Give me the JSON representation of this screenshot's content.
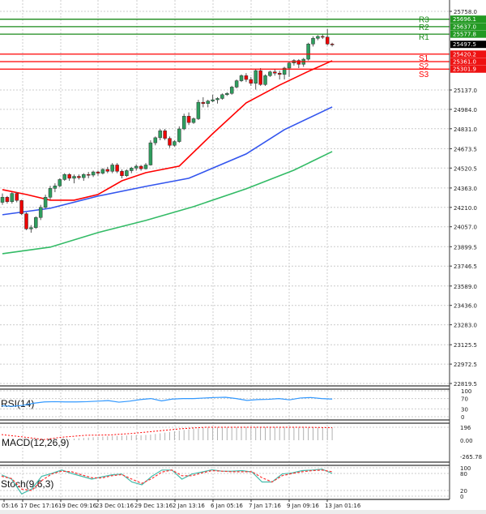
{
  "chart_data": [
    {
      "type": "candlestick",
      "pane": "price",
      "ylim": [
        22819.5,
        25758.0
      ],
      "y_ticks": [
        "25758.0",
        "25137.0",
        "24984.0",
        "24831.0",
        "24673.5",
        "24520.5",
        "24363.0",
        "24210.0",
        "24057.0",
        "23899.5",
        "23746.5",
        "23589.0",
        "23436.0",
        "23283.0",
        "23125.5",
        "22972.5",
        "22819.5"
      ],
      "x_ticks": [
        "05:16",
        "17 Dec 17:16",
        "19 Dec 09:16",
        "23 Dec 01:16",
        "29 Dec 13:16",
        "2 Jan 13:16",
        "6 Jan 05:16",
        "7 Jan 17:16",
        "9 Jan 09:16",
        "13 Jan 01:16"
      ],
      "grid": true,
      "current_price": "25497.5",
      "levels": [
        {
          "name": "R3",
          "value": "25696.1",
          "price": 25696.1,
          "color": "#1a8a1a"
        },
        {
          "name": "R2",
          "value": "25637.0",
          "price": 25637.0,
          "color": "#1a8a1a"
        },
        {
          "name": "R1",
          "value": "25577.8",
          "price": 25577.8,
          "color": "#1a8a1a"
        },
        {
          "name": "S1",
          "value": "25420.2",
          "price": 25420.2,
          "color": "#ff0000"
        },
        {
          "name": "S2",
          "value": "25361.0",
          "price": 25361.0,
          "color": "#ff0000"
        },
        {
          "name": "S3",
          "value": "25301.9",
          "price": 25301.9,
          "color": "#ff0000"
        }
      ],
      "ohlc": [
        [
          24250,
          24320,
          24230,
          24290
        ],
        [
          24290,
          24300,
          24240,
          24255
        ],
        [
          24255,
          24330,
          24240,
          24320
        ],
        [
          24320,
          24330,
          24250,
          24265
        ],
        [
          24265,
          24270,
          24150,
          24160
        ],
        [
          24160,
          24170,
          24030,
          24040
        ],
        [
          24040,
          24070,
          24010,
          24050
        ],
        [
          24050,
          24140,
          24040,
          24130
        ],
        [
          24130,
          24230,
          24110,
          24210
        ],
        [
          24210,
          24310,
          24200,
          24290
        ],
        [
          24290,
          24380,
          24270,
          24360
        ],
        [
          24360,
          24400,
          24330,
          24380
        ],
        [
          24380,
          24440,
          24370,
          24430
        ],
        [
          24430,
          24480,
          24420,
          24470
        ],
        [
          24470,
          24480,
          24420,
          24440
        ],
        [
          24440,
          24470,
          24400,
          24455
        ],
        [
          24455,
          24470,
          24430,
          24445
        ],
        [
          24445,
          24480,
          24420,
          24470
        ],
        [
          24470,
          24490,
          24440,
          24465
        ],
        [
          24465,
          24500,
          24450,
          24490
        ],
        [
          24490,
          24500,
          24460,
          24480
        ],
        [
          24480,
          24520,
          24470,
          24510
        ],
        [
          24510,
          24530,
          24480,
          24495
        ],
        [
          24495,
          24560,
          24480,
          24545
        ],
        [
          24545,
          24560,
          24480,
          24495
        ],
        [
          24495,
          24510,
          24440,
          24460
        ],
        [
          24460,
          24510,
          24450,
          24500
        ],
        [
          24500,
          24530,
          24480,
          24520
        ],
        [
          24520,
          24550,
          24500,
          24535
        ],
        [
          24535,
          24545,
          24500,
          24515
        ],
        [
          24515,
          24560,
          24510,
          24545
        ],
        [
          24545,
          24740,
          24540,
          24720
        ],
        [
          24720,
          24770,
          24700,
          24760
        ],
        [
          24760,
          24830,
          24740,
          24815
        ],
        [
          24815,
          24830,
          24740,
          24755
        ],
        [
          24755,
          24770,
          24680,
          24700
        ],
        [
          24700,
          24740,
          24690,
          24730
        ],
        [
          24730,
          24850,
          24720,
          24830
        ],
        [
          24830,
          24950,
          24820,
          24930
        ],
        [
          24930,
          24960,
          24860,
          24880
        ],
        [
          24880,
          24920,
          24870,
          24910
        ],
        [
          24910,
          25060,
          24900,
          25040
        ],
        [
          25040,
          25080,
          25000,
          25030
        ],
        [
          25030,
          25060,
          25000,
          25050
        ],
        [
          25050,
          25100,
          25040,
          25060
        ],
        [
          25060,
          25080,
          25030,
          25070
        ],
        [
          25070,
          25110,
          25060,
          25100
        ],
        [
          25100,
          25120,
          25090,
          25110
        ],
        [
          25110,
          25170,
          25100,
          25160
        ],
        [
          25160,
          25220,
          25150,
          25210
        ],
        [
          25210,
          25260,
          25200,
          25250
        ],
        [
          25250,
          25270,
          25200,
          25220
        ],
        [
          25220,
          25240,
          25170,
          25190
        ],
        [
          25190,
          25300,
          25140,
          25290
        ],
        [
          25290,
          25310,
          25170,
          25180
        ],
        [
          25180,
          25260,
          25170,
          25250
        ],
        [
          25250,
          25290,
          25240,
          25280
        ],
        [
          25280,
          25300,
          25250,
          25270
        ],
        [
          25270,
          25290,
          25220,
          25260
        ],
        [
          25260,
          25320,
          25220,
          25310
        ],
        [
          25310,
          25360,
          25240,
          25350
        ],
        [
          25350,
          25380,
          25330,
          25370
        ],
        [
          25370,
          25380,
          25310,
          25340
        ],
        [
          25340,
          25390,
          25320,
          25380
        ],
        [
          25380,
          25510,
          25370,
          25500
        ],
        [
          25500,
          25560,
          25480,
          25545
        ],
        [
          25545,
          25570,
          25530,
          25560
        ],
        [
          25560,
          25580,
          25540,
          25555
        ],
        [
          25555,
          25620,
          25490,
          25500
        ],
        [
          25500,
          25510,
          25480,
          25495
        ]
      ],
      "moving_averages": [
        {
          "color": "#ff0000",
          "points": [
            [
              0,
              24350
            ],
            [
              5,
              24312
            ],
            [
              10,
              24267
            ],
            [
              15,
              24267
            ],
            [
              20,
              24312
            ],
            [
              25,
              24420
            ],
            [
              30,
              24484
            ],
            [
              37,
              24536
            ],
            [
              44,
              24792
            ],
            [
              51,
              25035
            ],
            [
              58,
              25176
            ],
            [
              64,
              25284
            ],
            [
              69,
              25368
            ]
          ]
        },
        {
          "color": "#3355ee",
          "points": [
            [
              0,
              24152
            ],
            [
              10,
              24203
            ],
            [
              20,
              24299
            ],
            [
              30,
              24376
            ],
            [
              39,
              24440
            ],
            [
              51,
              24632
            ],
            [
              59,
              24824
            ],
            [
              69,
              25003
            ]
          ]
        },
        {
          "color": "#33bb66",
          "points": [
            [
              0,
              23844
            ],
            [
              10,
              23896
            ],
            [
              20,
              24011
            ],
            [
              30,
              24107
            ],
            [
              40,
              24216
            ],
            [
              51,
              24357
            ],
            [
              61,
              24504
            ],
            [
              69,
              24651
            ]
          ]
        }
      ],
      "bull_color": "#2e9e5e",
      "bear_color": "#ee0000"
    },
    {
      "type": "line",
      "pane": "rsi",
      "label": "RSI(14)",
      "ylim": [
        0,
        100
      ],
      "y_ticks": [
        "100",
        "70",
        "30",
        "0"
      ],
      "color": "#3399ff",
      "values": [
        42,
        40,
        44,
        52,
        57,
        58,
        57,
        57,
        58,
        60,
        62,
        56,
        60,
        66,
        70,
        61,
        68,
        70,
        70,
        72,
        74,
        75,
        70,
        63,
        66,
        67,
        70,
        65,
        72,
        74,
        70,
        68
      ]
    },
    {
      "type": "bar+line",
      "pane": "macd",
      "label": "MACD(12,26,9)",
      "ylim": [
        -265.78,
        196
      ],
      "y_ticks": [
        "196",
        "0.00",
        "-265.78"
      ],
      "histogram": [
        0,
        0,
        0,
        0,
        0,
        0,
        0,
        0,
        0,
        0,
        0,
        0,
        0,
        0,
        15,
        25,
        30,
        35,
        40,
        45,
        50,
        55,
        60,
        65,
        65,
        70,
        70,
        75,
        75,
        75,
        80,
        85,
        95,
        105,
        115,
        125,
        135,
        145,
        155,
        165,
        175,
        180,
        185,
        190,
        195,
        196,
        196,
        196,
        196,
        196,
        196,
        196,
        196,
        196,
        196,
        196,
        196,
        196,
        194,
        192,
        190,
        190,
        190,
        190,
        190,
        190,
        190,
        190,
        190,
        190
      ],
      "signal": [
        [
          0,
          85
        ],
        [
          8,
          45
        ],
        [
          14,
          10
        ],
        [
          20,
          45
        ],
        [
          28,
          75
        ],
        [
          36,
          80
        ],
        [
          44,
          105
        ],
        [
          52,
          140
        ],
        [
          60,
          175
        ],
        [
          68,
          196
        ],
        [
          78,
          196
        ],
        [
          90,
          196
        ],
        [
          100,
          196
        ],
        [
          110,
          190
        ]
      ],
      "signal_color": "#ff0000",
      "hist_color": "#b0b0b0"
    },
    {
      "type": "line",
      "pane": "stoch",
      "label": "Stoch(9,6,3)",
      "ylim": [
        0,
        100
      ],
      "y_ticks": [
        "100",
        "80",
        "20",
        "0"
      ],
      "k": [
        75,
        60,
        8,
        25,
        70,
        80,
        92,
        80,
        70,
        60,
        68,
        75,
        78,
        50,
        40,
        70,
        92,
        92,
        60,
        78,
        85,
        93,
        88,
        88,
        90,
        85,
        50,
        50,
        78,
        82,
        90,
        92,
        95,
        80
      ],
      "d": [
        70,
        62,
        25,
        20,
        55,
        78,
        88,
        86,
        75,
        65,
        64,
        72,
        76,
        60,
        45,
        62,
        85,
        92,
        72,
        72,
        82,
        90,
        88,
        86,
        86,
        86,
        65,
        50,
        72,
        80,
        86,
        90,
        92,
        86
      ],
      "k_color": "#44bbaa",
      "d_color": "#ff3333"
    }
  ]
}
